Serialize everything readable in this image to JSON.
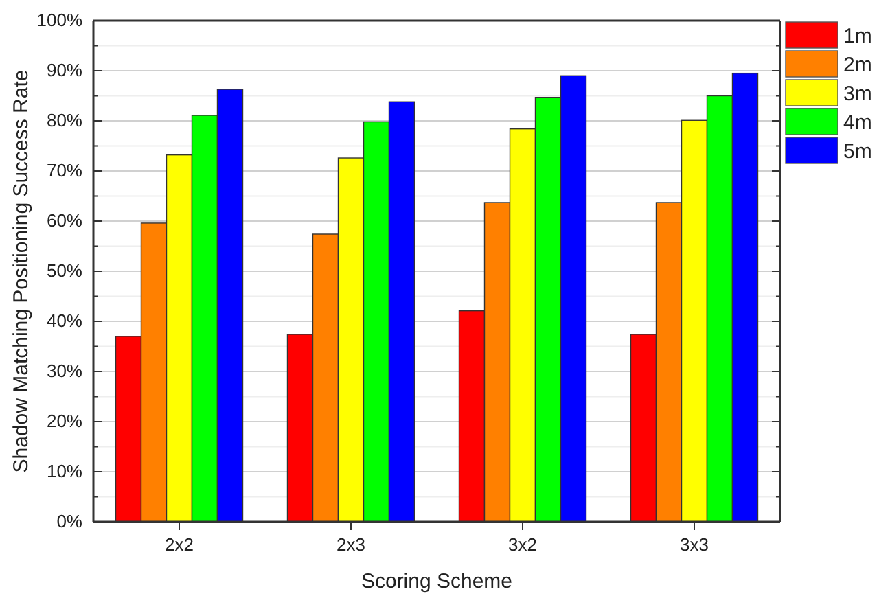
{
  "chart_data": {
    "type": "bar",
    "xlabel": "Scoring Scheme",
    "ylabel": "Shadow Matching Positioning Success Rate",
    "categories": [
      "2x2",
      "2x3",
      "3x2",
      "3x3"
    ],
    "series": [
      {
        "name": "1m",
        "color": "#ff0000",
        "values": [
          37.0,
          37.4,
          42.1,
          37.4
        ]
      },
      {
        "name": "2m",
        "color": "#ff8000",
        "values": [
          59.6,
          57.4,
          63.7,
          63.7
        ]
      },
      {
        "name": "3m",
        "color": "#ffff00",
        "values": [
          73.2,
          72.6,
          78.4,
          80.1
        ]
      },
      {
        "name": "4m",
        "color": "#00ff00",
        "values": [
          81.1,
          79.8,
          84.7,
          85.0
        ]
      },
      {
        "name": "5m",
        "color": "#0000ff",
        "values": [
          86.3,
          83.8,
          89.0,
          89.5
        ]
      }
    ],
    "ylim": [
      0,
      100
    ],
    "yticks": [
      {
        "value": 0,
        "label": "0%"
      },
      {
        "value": 5,
        "label": null
      },
      {
        "value": 10,
        "label": "10%"
      },
      {
        "value": 15,
        "label": null
      },
      {
        "value": 20,
        "label": "20%"
      },
      {
        "value": 25,
        "label": null
      },
      {
        "value": 30,
        "label": "30%"
      },
      {
        "value": 35,
        "label": null
      },
      {
        "value": 40,
        "label": "40%"
      },
      {
        "value": 45,
        "label": null
      },
      {
        "value": 50,
        "label": "50%"
      },
      {
        "value": 55,
        "label": null
      },
      {
        "value": 60,
        "label": "60%"
      },
      {
        "value": 65,
        "label": null
      },
      {
        "value": 70,
        "label": "70%"
      },
      {
        "value": 75,
        "label": null
      },
      {
        "value": 80,
        "label": "80%"
      },
      {
        "value": 85,
        "label": null
      },
      {
        "value": 90,
        "label": "90%"
      },
      {
        "value": 95,
        "label": null
      },
      {
        "value": 100,
        "label": "100%"
      }
    ],
    "grid": true,
    "legend": "top right"
  }
}
